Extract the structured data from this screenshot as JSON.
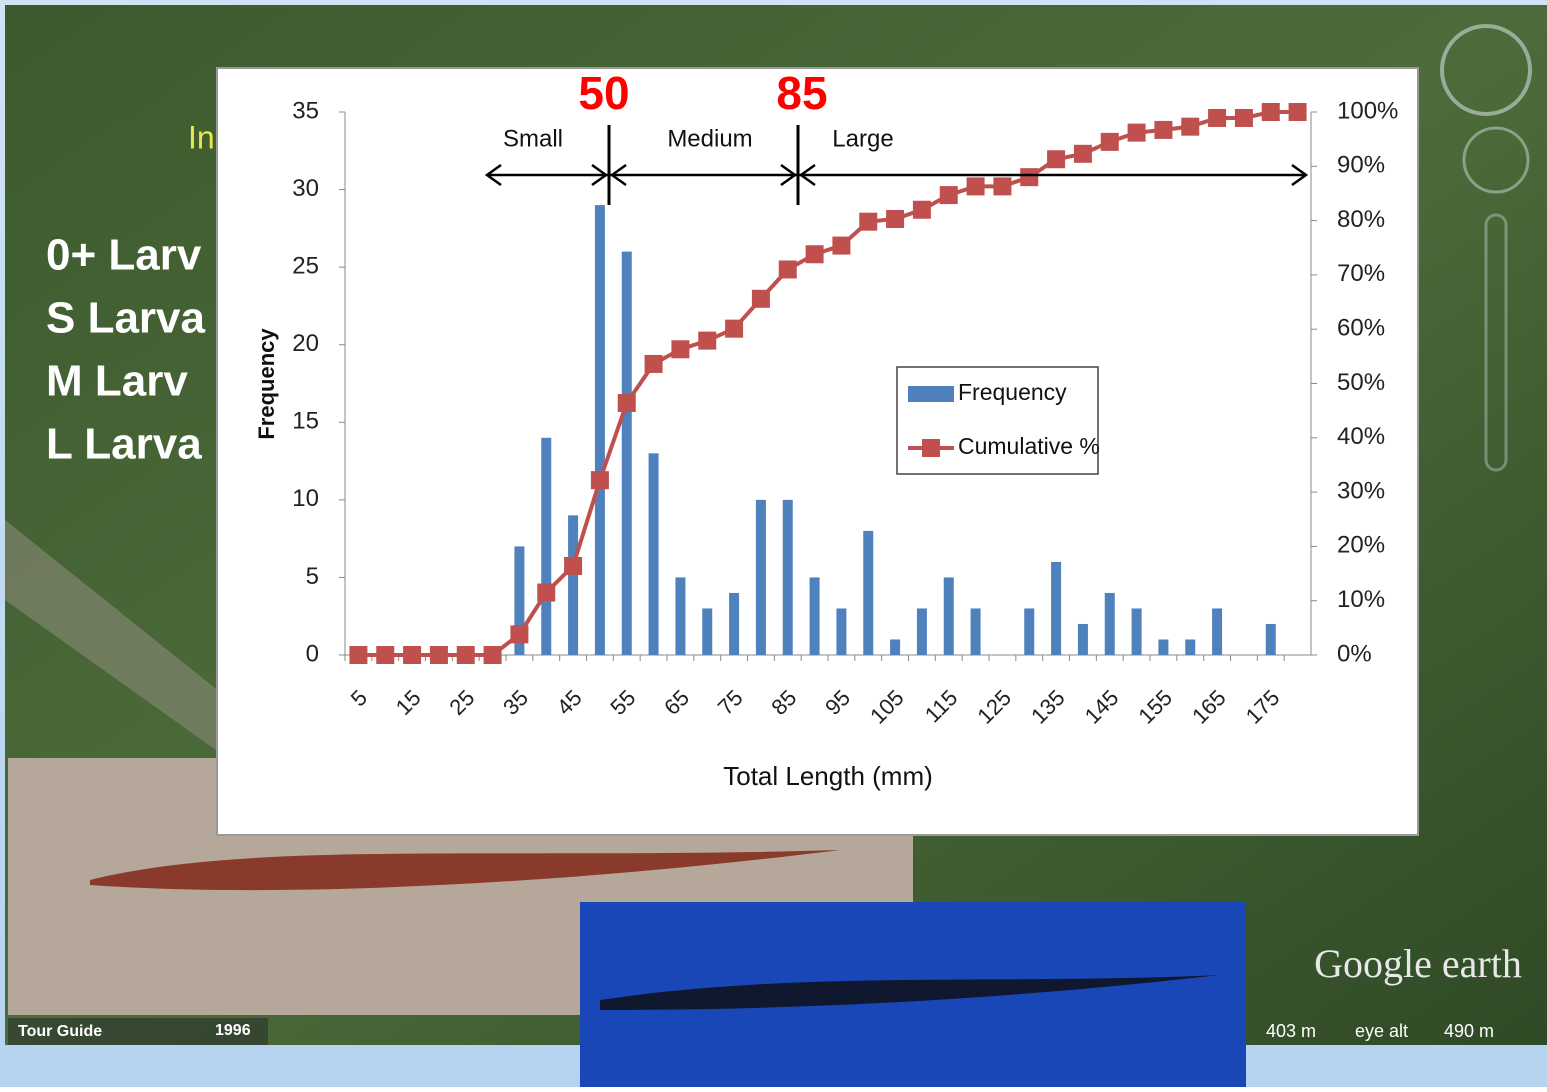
{
  "background": {
    "header_fragment": "In",
    "lines": [
      "0+ Larv",
      "S Larva",
      "M Larv",
      "L Larva"
    ],
    "tour_guide": "Tour Guide",
    "year": "1996",
    "logo": "Google earth",
    "distance": "403 m",
    "eye_alt_label": "eye alt",
    "eye_alt": "490 m"
  },
  "chart_data": {
    "type": "bar",
    "x_label": "Total Length (mm)",
    "y_label": "Frequency",
    "annotations": {
      "small_boundary": "50",
      "large_boundary": "85",
      "small": "Small",
      "medium": "Medium",
      "large": "Large"
    },
    "categories": [
      "5",
      null,
      "15",
      null,
      "25",
      null,
      "35",
      null,
      "45",
      null,
      "55",
      null,
      "65",
      null,
      "75",
      null,
      "85",
      null,
      "95",
      null,
      "105",
      null,
      "115",
      null,
      "125",
      null,
      "135",
      null,
      "145",
      null,
      "155",
      null,
      "165",
      null,
      "175",
      null
    ],
    "series": [
      {
        "name": "Frequency",
        "type": "bar",
        "color": "#4f81bd",
        "values": [
          0,
          0,
          0,
          0,
          0,
          0,
          7,
          14,
          9,
          29,
          26,
          13,
          5,
          3,
          4,
          10,
          10,
          5,
          3,
          8,
          1,
          3,
          5,
          3,
          0,
          3,
          6,
          2,
          4,
          3,
          1,
          1,
          3,
          0,
          2,
          0
        ]
      },
      {
        "name": "Cumulative %",
        "type": "line",
        "axis": "y2",
        "color": "#c0504d",
        "values": [
          0,
          0,
          0,
          0,
          0,
          0,
          3.8,
          11.5,
          16.4,
          32.2,
          46.4,
          53.6,
          56.3,
          57.9,
          60.1,
          65.6,
          71.0,
          73.8,
          75.4,
          79.8,
          80.3,
          82.0,
          84.7,
          86.3,
          86.3,
          88.0,
          91.3,
          92.3,
          94.5,
          96.2,
          96.7,
          97.3,
          98.9,
          98.9,
          100,
          100
        ]
      }
    ],
    "ylim": [
      0,
      35
    ],
    "yticks": [
      0,
      5,
      10,
      15,
      20,
      25,
      30,
      35
    ],
    "y2lim": [
      0,
      100
    ],
    "y2ticks": [
      {
        "value": 0,
        "label": "0%"
      },
      {
        "value": 10,
        "label": "10%"
      },
      {
        "value": 20,
        "label": "20%"
      },
      {
        "value": 30,
        "label": "30%"
      },
      {
        "value": 40,
        "label": "40%"
      },
      {
        "value": 50,
        "label": "50%"
      },
      {
        "value": 60,
        "label": "60%"
      },
      {
        "value": 70,
        "label": "70%"
      },
      {
        "value": 80,
        "label": "80%"
      },
      {
        "value": 90,
        "label": "90%"
      },
      {
        "value": 100,
        "label": "100%"
      }
    ],
    "grid": false,
    "legend": "center-right"
  }
}
